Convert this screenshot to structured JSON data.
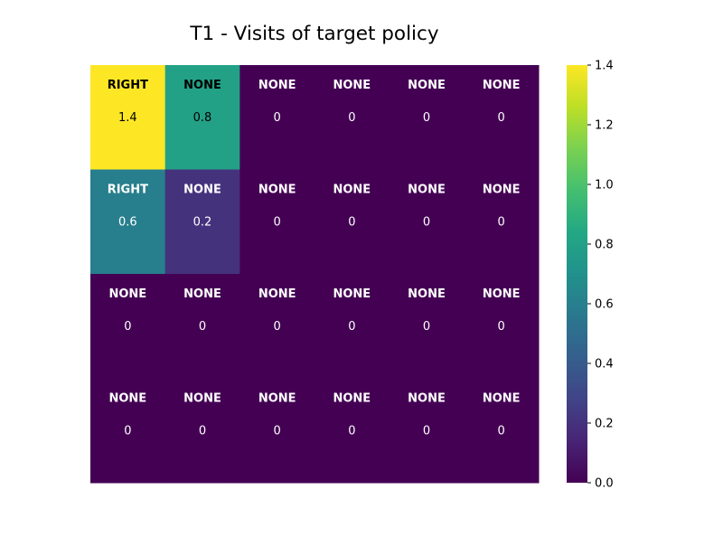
{
  "chart_data": {
    "type": "heatmap",
    "title": "T1 - Visits of target policy",
    "xlabel": "",
    "ylabel": "",
    "colormap": "viridis",
    "vmin": 0.0,
    "vmax": 1.4,
    "rows": 4,
    "cols": 6,
    "values": [
      [
        1.4,
        0.8,
        0,
        0,
        0,
        0
      ],
      [
        0.6,
        0.2,
        0,
        0,
        0,
        0
      ],
      [
        0,
        0,
        0,
        0,
        0,
        0
      ],
      [
        0,
        0,
        0,
        0,
        0,
        0
      ]
    ],
    "value_labels": [
      [
        "1.4",
        "0.8",
        "0",
        "0",
        "0",
        "0"
      ],
      [
        "0.6",
        "0.2",
        "0",
        "0",
        "0",
        "0"
      ],
      [
        "0",
        "0",
        "0",
        "0",
        "0",
        "0"
      ],
      [
        "0",
        "0",
        "0",
        "0",
        "0",
        "0"
      ]
    ],
    "actions": [
      [
        "RIGHT",
        "NONE",
        "NONE",
        "NONE",
        "NONE",
        "NONE"
      ],
      [
        "RIGHT",
        "NONE",
        "NONE",
        "NONE",
        "NONE",
        "NONE"
      ],
      [
        "NONE",
        "NONE",
        "NONE",
        "NONE",
        "NONE",
        "NONE"
      ],
      [
        "NONE",
        "NONE",
        "NONE",
        "NONE",
        "NONE",
        "NONE"
      ]
    ],
    "colorbar": {
      "ticks": [
        0.0,
        0.2,
        0.4,
        0.6,
        0.8,
        1.0,
        1.2,
        1.4
      ],
      "tick_labels": [
        "0.0",
        "0.2",
        "0.4",
        "0.6",
        "0.8",
        "1.0",
        "1.2",
        "1.4"
      ]
    },
    "grid": false,
    "legend": "none"
  }
}
